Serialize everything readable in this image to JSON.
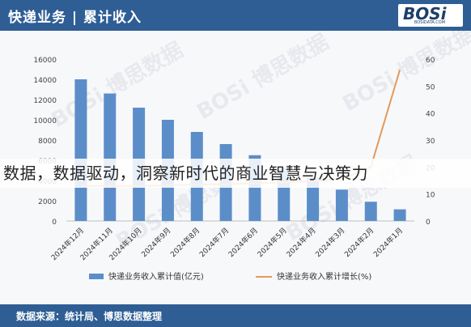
{
  "header": {
    "title": "快递业务 | 累计收入"
  },
  "logo": {
    "text": "BOSi",
    "sub": "BOSIDATA.COM"
  },
  "watermark": "BOSi 博思数据",
  "overlay_text": "数据，数据驱动，洞察新时代的商业智慧与决策力",
  "footer": {
    "source": "数据来源：统计局、博思数据整理"
  },
  "colors": {
    "bar": "#5b8ec9",
    "line": "#e39a5a",
    "header": "#2f5e95"
  },
  "chart_data": {
    "type": "bar",
    "categories": [
      "2024年12月",
      "2024年11月",
      "2024年10月",
      "2024年9月",
      "2024年8月",
      "2024年7月",
      "2024年6月",
      "2024年5月",
      "2024年4月",
      "2024年3月",
      "2024年2月",
      "2024年1月"
    ],
    "series": [
      {
        "name": "快递业务收入累计值(亿元)",
        "type": "bar",
        "axis": "left",
        "values": [
          14000,
          12600,
          11200,
          10000,
          8800,
          7600,
          6500,
          5300,
          4300,
          3100,
          1900,
          1150
        ]
      },
      {
        "name": "快递业务收入累计增长(%)",
        "type": "line",
        "axis": "right",
        "values": [
          13,
          13,
          13,
          13.2,
          13.5,
          13.6,
          14,
          14.3,
          14.8,
          15.6,
          20,
          56
        ]
      }
    ],
    "ylim_left": [
      0,
      16000
    ],
    "yticks_left": [
      "0",
      "2000",
      "4000",
      "6000",
      "8000",
      "10000",
      "12000",
      "14000",
      "16000"
    ],
    "ylim_right": [
      0,
      60
    ],
    "yticks_right": [
      "0",
      "10",
      "20",
      "30",
      "40",
      "50",
      "60"
    ],
    "grid": false,
    "legend": "bottom"
  }
}
